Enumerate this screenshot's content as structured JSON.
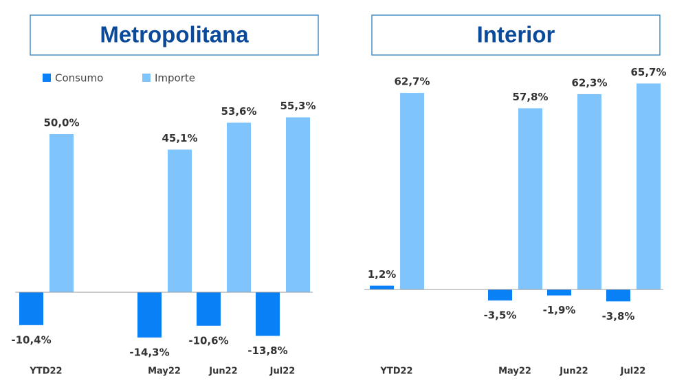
{
  "chart_data": [
    {
      "type": "bar",
      "title": "Metropolitana",
      "categories": [
        "YTD22",
        null,
        "May22",
        "Jun22",
        "Jul22"
      ],
      "series": [
        {
          "name": "Consumo",
          "color": "#0a80f6",
          "values": [
            -10.4,
            null,
            -14.3,
            -10.6,
            -13.8
          ],
          "value_labels": [
            "-10,4%",
            null,
            "-14,3%",
            "-10,6%",
            "-13,8%"
          ]
        },
        {
          "name": "Importe",
          "color": "#7fc4fd",
          "values": [
            50.0,
            null,
            45.1,
            53.6,
            55.3
          ],
          "value_labels": [
            "50,0%",
            null,
            "45,1%",
            "53,6%",
            "55,3%"
          ]
        }
      ],
      "legend": "top-left"
    },
    {
      "type": "bar",
      "title": "Interior",
      "categories": [
        "YTD22",
        null,
        "May22",
        "Jun22",
        "Jul22"
      ],
      "series": [
        {
          "color": "#0a80f6",
          "values": [
            1.2,
            null,
            -3.5,
            -1.9,
            -3.8
          ],
          "value_labels": [
            "1,2%",
            null,
            "-3,5%",
            "-1,9%",
            "-3,8%"
          ]
        },
        {
          "color": "#7fc4fd",
          "values": [
            62.7,
            null,
            57.8,
            62.3,
            65.7
          ],
          "value_labels": [
            "62,7%",
            null,
            "57,8%",
            "62,3%",
            "65,7%"
          ]
        }
      ]
    }
  ]
}
